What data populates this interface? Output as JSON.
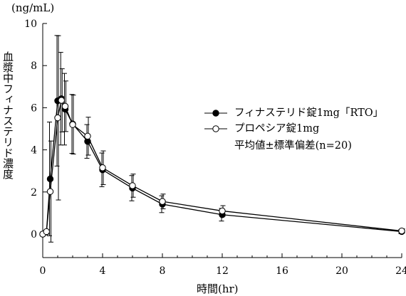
{
  "chart_data": {
    "type": "line",
    "unit_label": "(ng/mL)",
    "xlabel": "時間(hr)",
    "ylabel": "血漿中フィナステリド濃度",
    "xlim": [
      0,
      24
    ],
    "ylim": [
      0,
      10
    ],
    "xticks": [
      0,
      4,
      8,
      12,
      16,
      20,
      24
    ],
    "yticks": [
      0,
      2,
      4,
      6,
      8,
      10
    ],
    "grid": false,
    "legend_position": "right",
    "legend_note": "平均値±標準偏差(n=20)",
    "series": [
      {
        "name": "フィナステリド錠1mg「RTO」",
        "marker": "filled-circle",
        "color": "#000000",
        "x": [
          0,
          0.25,
          0.5,
          1,
          1.25,
          1.5,
          2,
          3,
          4,
          6,
          8,
          12,
          24
        ],
        "y": [
          0.0,
          0.1,
          2.62,
          6.33,
          6.43,
          5.93,
          5.23,
          4.4,
          3.05,
          2.18,
          1.42,
          0.92,
          0.12
        ],
        "err": [
          0,
          0,
          2.7,
          3.1,
          2.2,
          1.7,
          1.4,
          0.8,
          0.8,
          0.6,
          0.4,
          0.3,
          0.1
        ]
      },
      {
        "name": "プロペシア錠1mg",
        "marker": "open-circle",
        "color": "#000000",
        "x": [
          0,
          0.25,
          0.5,
          1,
          1.25,
          1.5,
          2,
          3,
          4,
          6,
          8,
          12,
          24
        ],
        "y": [
          0.0,
          0.12,
          2.02,
          5.52,
          6.35,
          6.07,
          5.2,
          4.65,
          3.15,
          2.3,
          1.55,
          1.1,
          0.15
        ],
        "err": [
          0,
          0,
          2.4,
          3.9,
          1.5,
          1.2,
          1.4,
          0.9,
          0.8,
          0.55,
          0.35,
          0.25,
          0.1
        ]
      }
    ]
  }
}
